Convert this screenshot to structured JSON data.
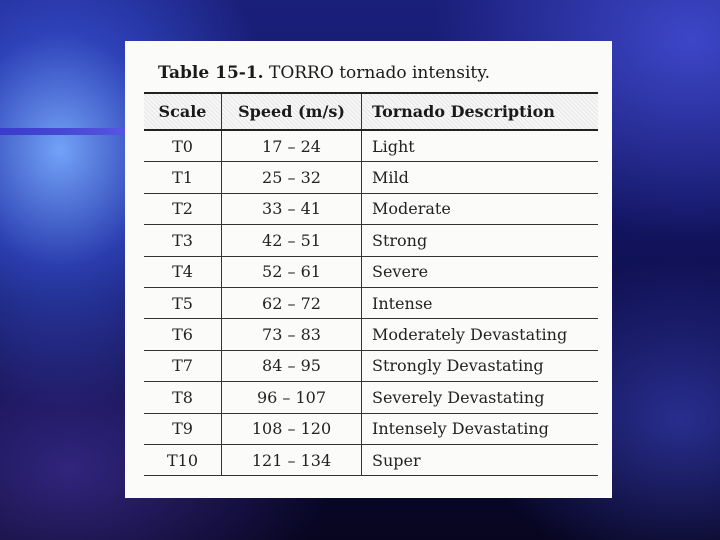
{
  "table": {
    "caption_number": "Table 15-1.",
    "caption_text": "TORRO tornado intensity.",
    "headers": [
      "Scale",
      "Speed (m/s)",
      "Tornado Description"
    ],
    "rows": [
      {
        "scale": "T0",
        "speed": "17 – 24",
        "description": "Light"
      },
      {
        "scale": "T1",
        "speed": "25 – 32",
        "description": "Mild"
      },
      {
        "scale": "T2",
        "speed": "33 – 41",
        "description": "Moderate"
      },
      {
        "scale": "T3",
        "speed": "42 – 51",
        "description": "Strong"
      },
      {
        "scale": "T4",
        "speed": "52 – 61",
        "description": "Severe"
      },
      {
        "scale": "T5",
        "speed": "62 – 72",
        "description": "Intense"
      },
      {
        "scale": "T6",
        "speed": "73 – 83",
        "description": "Moderately Devastating"
      },
      {
        "scale": "T7",
        "speed": "84 – 95",
        "description": "Strongly Devastating"
      },
      {
        "scale": "T8",
        "speed": "96 – 107",
        "description": "Severely Devastating"
      },
      {
        "scale": "T9",
        "speed": "108 – 120",
        "description": "Intensely Devastating"
      },
      {
        "scale": "T10",
        "speed": "121 – 134",
        "description": "Super"
      }
    ]
  }
}
